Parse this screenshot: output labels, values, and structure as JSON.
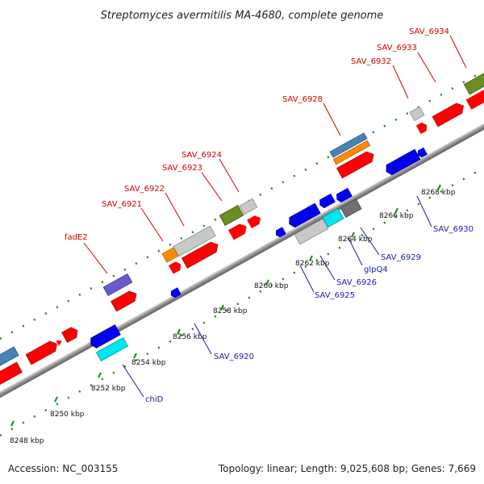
{
  "title": "Streptomyces avermitilis MA-4680, complete genome",
  "footer": {
    "accession": "Accession: NC_003155",
    "summary": "Topology: linear; Length: 9,025,608 bp; Genes: 7,669"
  },
  "ticks": [
    "8248 kbp",
    "8250 kbp",
    "8252 kbp",
    "8254 kbp",
    "8256 kbp",
    "8258 kbp",
    "8260 kbp",
    "8262 kbp",
    "8264 kbp",
    "8266 kbp",
    "8268 kbp"
  ],
  "labels_top": [
    "fadE2",
    "SAV_6921",
    "SAV_6922",
    "SAV_6923",
    "SAV_6924",
    "SAV_6928",
    "SAV_6932",
    "SAV_6933",
    "SAV_6934"
  ],
  "labels_bottom": [
    "chiD",
    "SAV_6920",
    "SAV_6925",
    "SAV_6926",
    "glpQ4",
    "SAV_6929",
    "SAV_6930"
  ],
  "colors": {
    "forward_cds": "#ff0000",
    "reverse_cds": "#0000ee",
    "gray_feature": "#c8c8c8",
    "dark_gray_feature": "#707070",
    "steel_blue": "#4682b4",
    "orange": "#ff8c00",
    "olive_green": "#6b8e23",
    "purple": "#6a5acd",
    "cyan": "#00e5ee",
    "backbone": "#9a9a9a",
    "tick_green": "#1a8a1a",
    "label_red": "#d40000",
    "label_blue": "#1a1aa8"
  }
}
